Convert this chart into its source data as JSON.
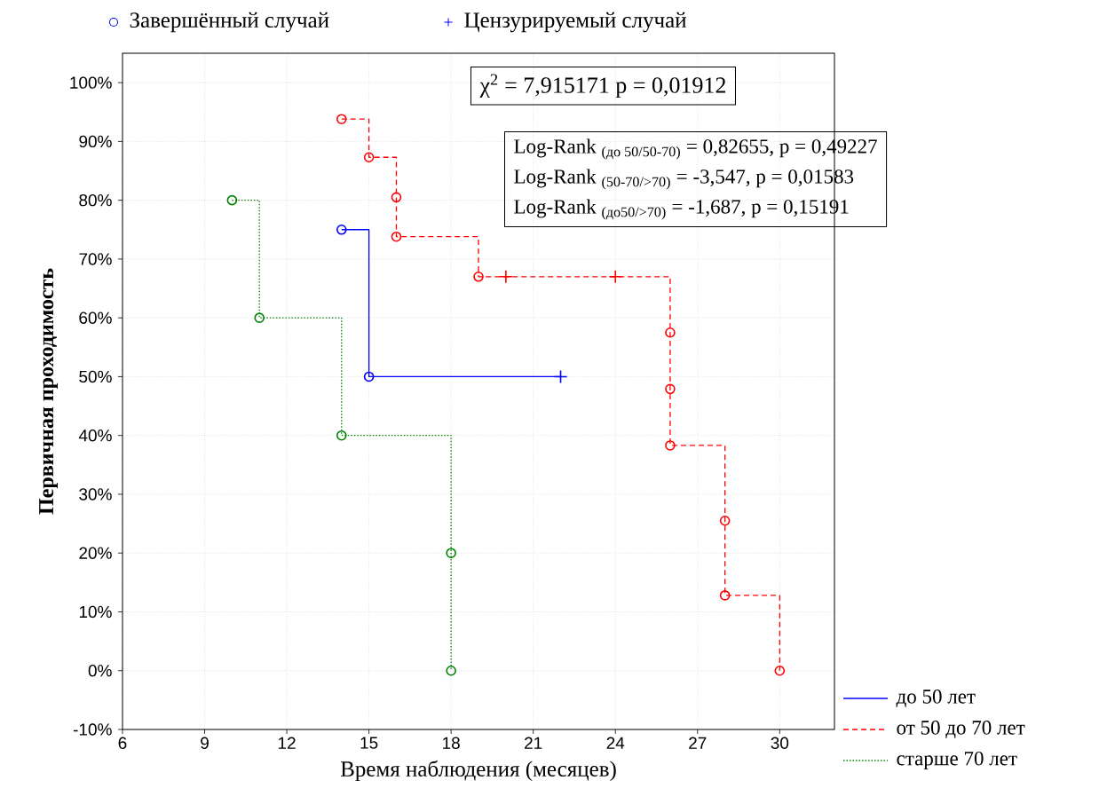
{
  "chart_data": {
    "type": "step",
    "xlabel": "Время наблюдения (месяцев)",
    "ylabel": "Первичная проходимость",
    "xlim": [
      6,
      32
    ],
    "xticks": [
      6,
      9,
      12,
      15,
      18,
      21,
      24,
      27,
      30
    ],
    "ylim": [
      -10,
      105
    ],
    "yticks": [
      {
        "value": -10,
        "label": "-10%"
      },
      {
        "value": 0,
        "label": "0%"
      },
      {
        "value": 10,
        "label": "10%"
      },
      {
        "value": 20,
        "label": "20%"
      },
      {
        "value": 30,
        "label": "30%"
      },
      {
        "value": 40,
        "label": "40%"
      },
      {
        "value": 50,
        "label": "50%"
      },
      {
        "value": 60,
        "label": "60%"
      },
      {
        "value": 70,
        "label": "70%"
      },
      {
        "value": 80,
        "label": "80%"
      },
      {
        "value": 90,
        "label": "90%"
      },
      {
        "value": 100,
        "label": "100%"
      }
    ],
    "grid": true,
    "legend": "top right",
    "annotations": [
      "χ$^{2}$ = 7,915171 p = 0,01912",
      "Log-Rank $_{(до 50/50-70)}$ = 0,82655, p = 0,49227",
      "Log-Rank $_{(50-70/>70)}$ = -3,547, p = 0,01583",
      "Log-Rank $_{(до50/>70)}$ = -1,687, p = 0,15191"
    ],
    "series": [
      {
        "name": "до 50 лет",
        "color": "#0000ff",
        "line_style": "solid",
        "x": [
          14,
          15,
          22
        ],
        "values": [
          75,
          50,
          50
        ]
      },
      {
        "name": "от 50 до 70 лет",
        "color": "#ff0000",
        "line_style": "dashed",
        "x": [
          14,
          15,
          16,
          16,
          19,
          20,
          24,
          26,
          26,
          26,
          28,
          28,
          30
        ],
        "values": [
          93.8,
          87.3,
          80.5,
          73.8,
          67,
          67,
          67,
          57.5,
          47.9,
          38.3,
          25.5,
          12.8,
          0
        ]
      },
      {
        "name": "старше 70 лет",
        "color": "#008000",
        "line_style": "dotted",
        "x": [
          10,
          11,
          14,
          18,
          18
        ],
        "values": [
          80,
          60,
          40,
          20,
          0
        ]
      },
      {
        "name": "Завершённый случай",
        "type": "scatter",
        "marker": "circle",
        "color": "#0000ff",
        "x": [
          14,
          15,
          14,
          15,
          16,
          16,
          19,
          26,
          26,
          26,
          28,
          28,
          30,
          10,
          11,
          14,
          18,
          18
        ],
        "values": [
          75,
          50,
          93.8,
          87.3,
          80.5,
          73.8,
          67,
          57.5,
          47.9,
          38.3,
          25.5,
          12.8,
          0,
          80,
          60,
          40,
          20,
          0
        ],
        "colors": [
          "#0000ff",
          "#0000ff",
          "#ff0000",
          "#ff0000",
          "#ff0000",
          "#ff0000",
          "#ff0000",
          "#ff0000",
          "#ff0000",
          "#ff0000",
          "#ff0000",
          "#ff0000",
          "#ff0000",
          "#008000",
          "#008000",
          "#008000",
          "#008000",
          "#008000"
        ]
      },
      {
        "name": "Цензурируемый случай",
        "type": "scatter",
        "marker": "cross",
        "color": "#0000ff",
        "x": [
          22,
          20,
          24
        ],
        "values": [
          50,
          67,
          67
        ],
        "colors": [
          "#0000ff",
          "#ff0000",
          "#ff0000"
        ]
      }
    ]
  }
}
